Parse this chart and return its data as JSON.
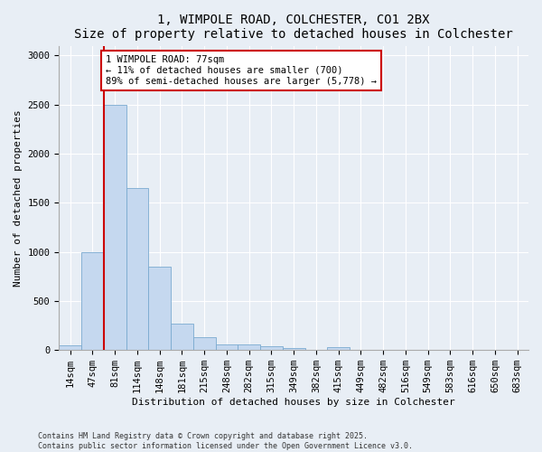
{
  "title1": "1, WIMPOLE ROAD, COLCHESTER, CO1 2BX",
  "title2": "Size of property relative to detached houses in Colchester",
  "xlabel": "Distribution of detached houses by size in Colchester",
  "ylabel": "Number of detached properties",
  "categories": [
    "14sqm",
    "47sqm",
    "81sqm",
    "114sqm",
    "148sqm",
    "181sqm",
    "215sqm",
    "248sqm",
    "282sqm",
    "315sqm",
    "349sqm",
    "382sqm",
    "415sqm",
    "449sqm",
    "482sqm",
    "516sqm",
    "549sqm",
    "583sqm",
    "616sqm",
    "650sqm",
    "683sqm"
  ],
  "values": [
    50,
    1000,
    2500,
    1650,
    850,
    270,
    130,
    60,
    60,
    40,
    20,
    0,
    30,
    0,
    0,
    0,
    0,
    0,
    0,
    0,
    0
  ],
  "bar_color": "#c5d8ef",
  "bar_edge_color": "#7aaad0",
  "vline_color": "#cc0000",
  "annotation_text": "1 WIMPOLE ROAD: 77sqm\n← 11% of detached houses are smaller (700)\n89% of semi-detached houses are larger (5,778) →",
  "annotation_box_color": "#ffffff",
  "annotation_box_edge_color": "#cc0000",
  "ylim": [
    0,
    3100
  ],
  "yticks": [
    0,
    500,
    1000,
    1500,
    2000,
    2500,
    3000
  ],
  "footnote1": "Contains HM Land Registry data © Crown copyright and database right 2025.",
  "footnote2": "Contains public sector information licensed under the Open Government Licence v3.0.",
  "bg_color": "#e8eef5",
  "plot_bg_color": "#e8eef5",
  "title_fontsize": 10,
  "axis_fontsize": 8,
  "tick_fontsize": 7.5
}
